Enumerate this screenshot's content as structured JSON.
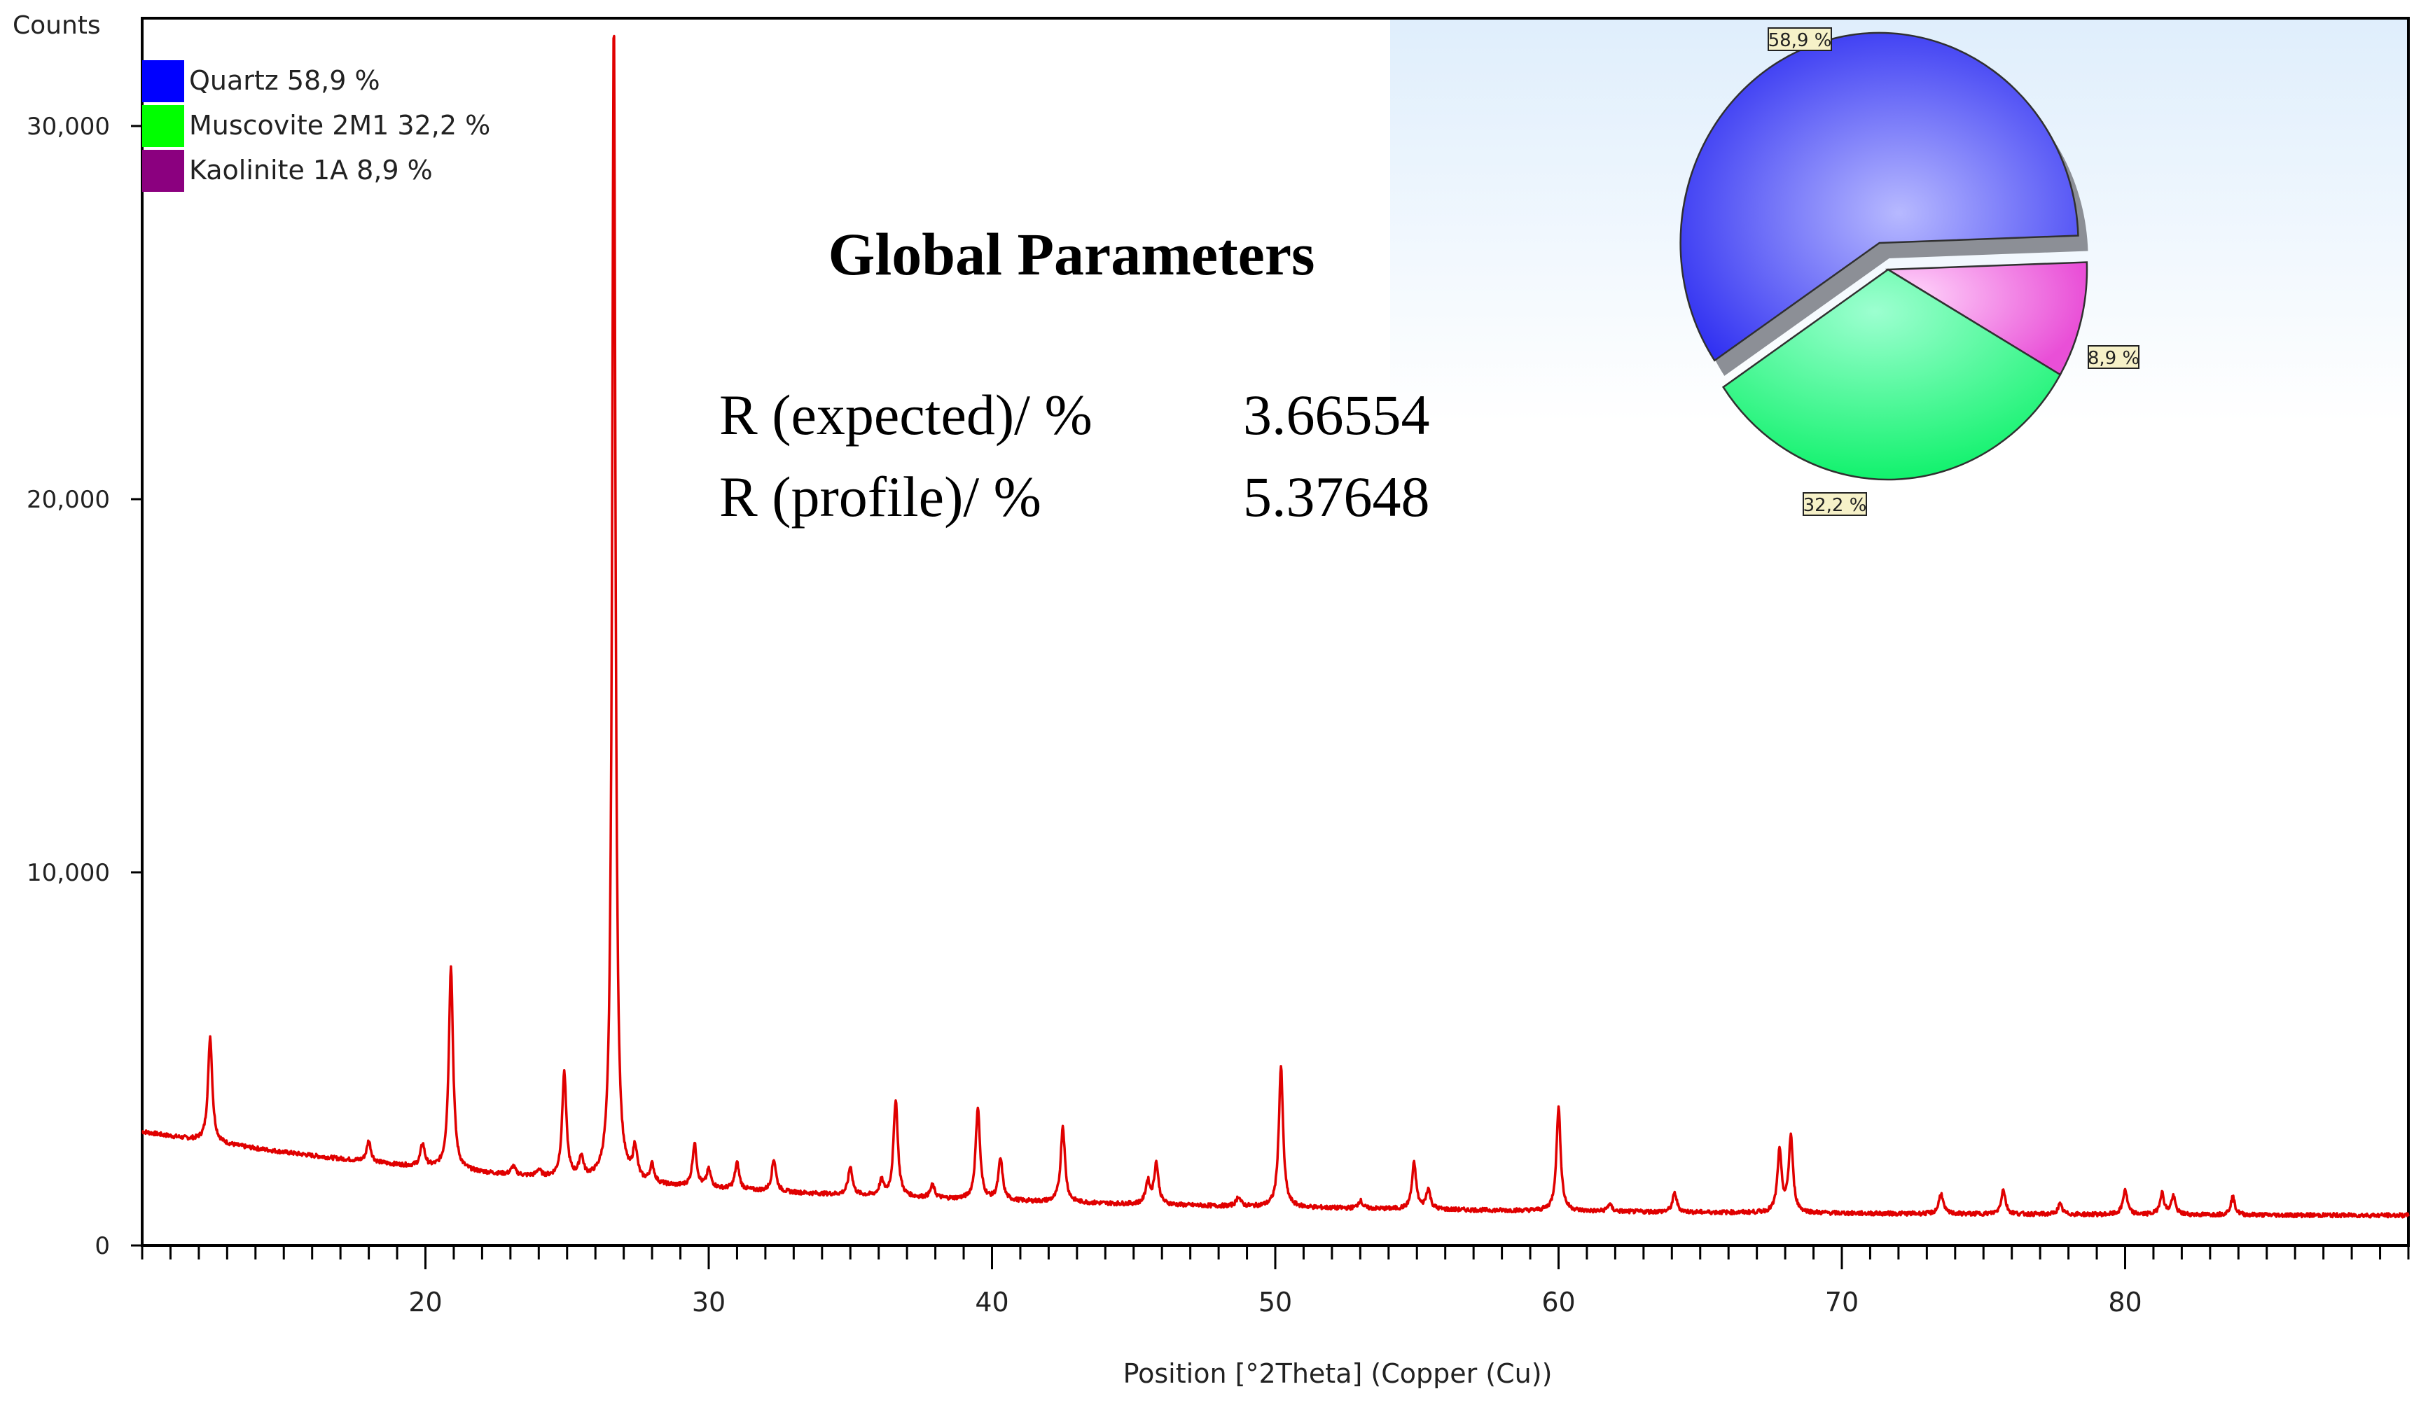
{
  "chart_data": [
    {
      "type": "line",
      "ylabel": "Counts",
      "xlabel": "Position [°2Theta] (Copper (Cu))",
      "xlim": [
        10,
        90
      ],
      "ylim": [
        0,
        33000
      ],
      "x_ticks": [
        20,
        30,
        40,
        50,
        60,
        70,
        80
      ],
      "y_ticks": [
        0,
        10000,
        20000,
        30000
      ],
      "y_tick_labels": [
        "0",
        "10,000",
        "20,000",
        "30,000"
      ],
      "grid": false,
      "line_color": "#e00000",
      "background": 3050,
      "series": [
        {
          "peaks": [
            {
              "x": 12.4,
              "y": 5600
            },
            {
              "x": 18.0,
              "y": 2800
            },
            {
              "x": 19.9,
              "y": 2700
            },
            {
              "x": 20.9,
              "y": 7500
            },
            {
              "x": 23.1,
              "y": 2100
            },
            {
              "x": 24.0,
              "y": 2000
            },
            {
              "x": 24.9,
              "y": 4600
            },
            {
              "x": 25.5,
              "y": 2300
            },
            {
              "x": 26.65,
              "y": 33000
            },
            {
              "x": 27.4,
              "y": 2500
            },
            {
              "x": 28.0,
              "y": 2100
            },
            {
              "x": 29.5,
              "y": 2700
            },
            {
              "x": 30.0,
              "y": 2000
            },
            {
              "x": 31.0,
              "y": 2200
            },
            {
              "x": 32.3,
              "y": 2300
            },
            {
              "x": 35.0,
              "y": 2100
            },
            {
              "x": 36.1,
              "y": 1700
            },
            {
              "x": 36.6,
              "y": 3900
            },
            {
              "x": 37.9,
              "y": 1600
            },
            {
              "x": 39.5,
              "y": 3700
            },
            {
              "x": 40.3,
              "y": 2300
            },
            {
              "x": 42.5,
              "y": 3200
            },
            {
              "x": 45.5,
              "y": 1700
            },
            {
              "x": 45.8,
              "y": 2200
            },
            {
              "x": 48.7,
              "y": 1300
            },
            {
              "x": 50.2,
              "y": 4800
            },
            {
              "x": 53.0,
              "y": 1200
            },
            {
              "x": 54.9,
              "y": 2200
            },
            {
              "x": 55.4,
              "y": 1500
            },
            {
              "x": 60.0,
              "y": 3700
            },
            {
              "x": 61.8,
              "y": 1100
            },
            {
              "x": 64.1,
              "y": 1400
            },
            {
              "x": 67.8,
              "y": 2500
            },
            {
              "x": 68.2,
              "y": 2900
            },
            {
              "x": 73.5,
              "y": 1400
            },
            {
              "x": 75.7,
              "y": 1500
            },
            {
              "x": 77.7,
              "y": 1100
            },
            {
              "x": 80.0,
              "y": 1500
            },
            {
              "x": 81.3,
              "y": 1400
            },
            {
              "x": 81.7,
              "y": 1300
            },
            {
              "x": 83.8,
              "y": 1300
            }
          ]
        }
      ]
    },
    {
      "type": "pie",
      "categories": [
        "Quartz 58,9 %",
        "Muscovite 2M1 32,2 %",
        "Kaolinite 1A 8,9 %"
      ],
      "values": [
        58.9,
        32.2,
        8.9
      ],
      "colors": [
        "#2f2ff5",
        "#00f07a",
        "#ee5fdd"
      ],
      "legend_colors": [
        "#0000ff",
        "#00ff00",
        "#8b007f"
      ],
      "slice_labels": [
        "58,9 %",
        "32,2 %",
        "8,9 %"
      ],
      "legend_position": "top-left"
    }
  ],
  "global_parameters": {
    "title": "Global Parameters",
    "rows": [
      {
        "label": "R (expected)/ %",
        "value": "3.66554"
      },
      {
        "label": "R (profile)/ %",
        "value": "5.37648"
      }
    ]
  }
}
